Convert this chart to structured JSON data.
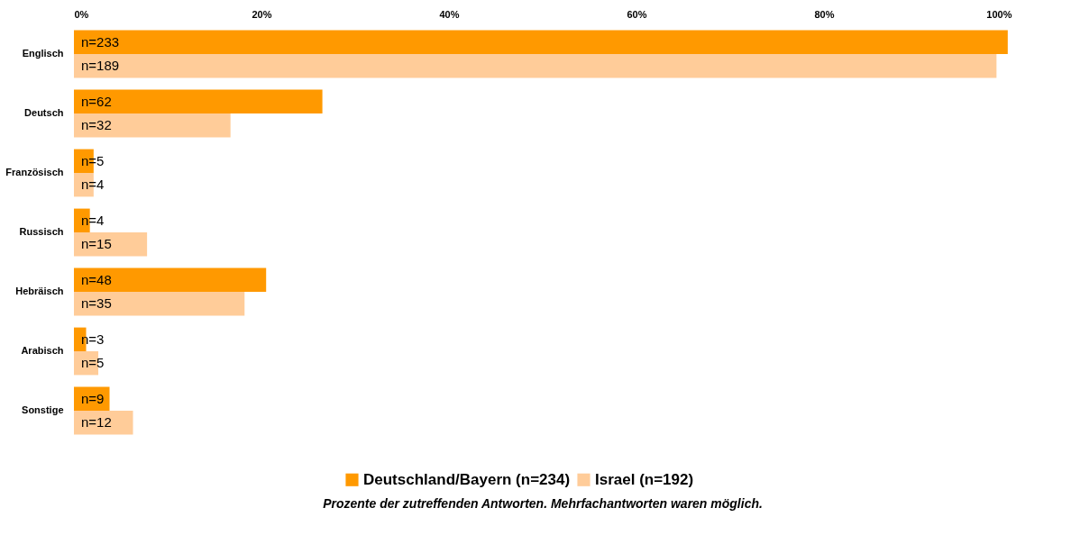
{
  "chart_data": {
    "type": "bar",
    "orientation": "horizontal",
    "categories": [
      "Englisch",
      "Deutsch",
      "Französisch",
      "Russisch",
      "Hebräisch",
      "Arabisch",
      "Sonstige"
    ],
    "series": [
      {
        "name": "Deutschland/Bayern (n=234)",
        "color": "#ff9900",
        "values": [
          99.6,
          26.5,
          2.1,
          1.7,
          20.5,
          1.3,
          3.8
        ]
      },
      {
        "name": "Israel (n=192)",
        "color": "#ffcc99",
        "values": [
          98.4,
          16.7,
          2.1,
          7.8,
          18.2,
          2.6,
          6.3
        ]
      }
    ],
    "xlim": [
      0,
      100
    ],
    "xticks": [
      {
        "value": 0,
        "label": "0%"
      },
      {
        "value": 20,
        "label": "20%"
      },
      {
        "value": 40,
        "label": "40%"
      },
      {
        "value": 60,
        "label": "60%"
      },
      {
        "value": 80,
        "label": "80%"
      },
      {
        "value": 100,
        "label": "100%"
      }
    ],
    "grid": false,
    "legend": "bottom",
    "annotations": [
      "Prozente der zutreffenden Antworten.        Mehrfachantworten waren möglich.",
      {
        "text": "n=233",
        "y": "Englisch"
      },
      {
        "text": "n=189",
        "y": "Englisch"
      },
      {
        "text": "n=62",
        "y": "Deutsch"
      },
      {
        "text": "n=32",
        "y": "Deutsch"
      },
      {
        "text": "n=5",
        "y": "Französisch"
      },
      {
        "text": "n=4",
        "y": "Französisch"
      },
      {
        "text": "n=4",
        "y": "Russisch"
      },
      {
        "text": "n=15",
        "y": "Russisch"
      },
      {
        "text": "n=48",
        "y": "Hebräisch"
      },
      {
        "text": "n=35",
        "y": "Hebräisch"
      },
      {
        "text": "n=3",
        "y": "Arabisch"
      },
      {
        "text": "n=5",
        "y": "Arabisch"
      },
      {
        "text": "n=9",
        "y": "Sonstige"
      },
      {
        "text": "n=12",
        "y": "Sonstige"
      }
    ]
  }
}
